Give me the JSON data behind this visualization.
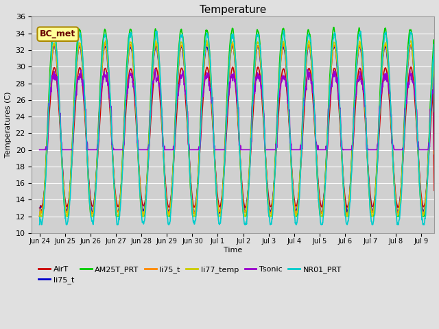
{
  "title": "Temperature",
  "xlabel": "Time",
  "ylabel": "Temperatures (C)",
  "ylim": [
    10,
    36
  ],
  "yticks": [
    10,
    12,
    14,
    16,
    18,
    20,
    22,
    24,
    26,
    28,
    30,
    32,
    34,
    36
  ],
  "fig_bg": "#e0e0e0",
  "plot_bg": "#d0d0d0",
  "series": [
    {
      "label": "AirT",
      "color": "#cc0000",
      "lw": 1.2
    },
    {
      "label": "li75_t",
      "color": "#0000cc",
      "lw": 1.2
    },
    {
      "label": "AM25T_PRT",
      "color": "#00cc00",
      "lw": 1.2
    },
    {
      "label": "li75_t",
      "color": "#ff8800",
      "lw": 1.2
    },
    {
      "label": "li77_temp",
      "color": "#cccc00",
      "lw": 1.2
    },
    {
      "label": "Tsonic",
      "color": "#9900cc",
      "lw": 1.2
    },
    {
      "label": "NR01_PRT",
      "color": "#00cccc",
      "lw": 1.2
    }
  ],
  "annotation": {
    "text": "BC_met",
    "fontsize": 9,
    "color": "#660000",
    "bg": "#ffff99",
    "border_color": "#aa8800"
  },
  "xtick_labels": [
    "Jun 24",
    "Jun 25",
    "Jun 26",
    "Jun 27",
    "Jun 28",
    "Jun 29",
    "Jun 30",
    "Jul 1",
    "Jul 2",
    "Jul 3",
    "Jul 4",
    "Jul 5",
    "Jul 6",
    "Jul 7",
    "Jul 8",
    "Jul 9"
  ],
  "xtick_positions": [
    0,
    1,
    2,
    3,
    4,
    5,
    6,
    7,
    8,
    9,
    10,
    11,
    12,
    13,
    14,
    15
  ]
}
